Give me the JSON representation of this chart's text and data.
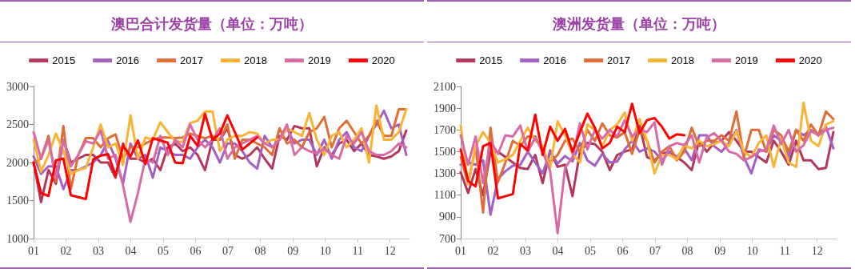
{
  "chart_data": [
    {
      "type": "line",
      "title": "澳巴合计发货量（单位：万吨）",
      "legend": "top",
      "grid": false,
      "marker": "none",
      "line_style": "solid",
      "x": [
        1,
        1.23,
        1.46,
        1.69,
        1.92,
        2.15,
        2.38,
        2.61,
        2.84,
        3.07,
        3.3,
        3.53,
        3.76,
        3.99,
        4.22,
        4.45,
        4.68,
        4.91,
        5.14,
        5.37,
        5.6,
        5.83,
        6.06,
        6.29,
        6.52,
        6.75,
        6.98,
        7.21,
        7.44,
        7.67,
        7.9,
        8.13,
        8.36,
        8.59,
        8.82,
        9.05,
        9.28,
        9.51,
        9.74,
        9.97,
        10.2,
        10.43,
        10.66,
        10.89,
        11.12,
        11.35,
        11.58,
        11.81,
        12.04,
        12.27,
        12.5
      ],
      "xlim": [
        1,
        12.6
      ],
      "xticks": [
        {
          "value": 1,
          "label": "01"
        },
        {
          "value": 2,
          "label": "02"
        },
        {
          "value": 3,
          "label": "03"
        },
        {
          "value": 4,
          "label": "04"
        },
        {
          "value": 5,
          "label": "05"
        },
        {
          "value": 6,
          "label": "06"
        },
        {
          "value": 7,
          "label": "07"
        },
        {
          "value": 8,
          "label": "08"
        },
        {
          "value": 9,
          "label": "09"
        },
        {
          "value": 10,
          "label": "10"
        },
        {
          "value": 11,
          "label": "11"
        },
        {
          "value": 12,
          "label": "12"
        }
      ],
      "ylim": [
        1000,
        3000
      ],
      "yticks": [
        1000,
        1500,
        2000,
        2500,
        3000
      ],
      "series": [
        {
          "name": "2015",
          "color": "#b5365b",
          "values": [
            2000,
            1480,
            1900,
            1720,
            2300,
            2000,
            2050,
            2100,
            2100,
            2000,
            2000,
            1800,
            2250,
            2050,
            2050,
            2000,
            2050,
            1900,
            2200,
            2250,
            2150,
            2200,
            2100,
            1900,
            2300,
            2300,
            2450,
            2100,
            2050,
            2100,
            2200,
            2050,
            1920,
            2350,
            2300,
            2480,
            2450,
            2450,
            1950,
            2200,
            2100,
            2250,
            2300,
            2150,
            2250,
            2100,
            2080,
            2050,
            2080,
            2150,
            2420
          ]
        },
        {
          "name": "2016",
          "color": "#a45fc4",
          "values": [
            2080,
            1850,
            1950,
            1950,
            1650,
            1900,
            1900,
            1950,
            2000,
            2100,
            2280,
            2050,
            1720,
            2250,
            2050,
            2100,
            1800,
            2200,
            2150,
            2100,
            2100,
            2050,
            2200,
            2300,
            2200,
            2000,
            2250,
            2250,
            2150,
            2000,
            1920,
            2350,
            2200,
            2300,
            2450,
            2250,
            2300,
            2300,
            2100,
            2300,
            2050,
            2300,
            2400,
            2200,
            2150,
            2350,
            2500,
            2680,
            2450,
            2500,
            2100
          ]
        },
        {
          "name": "2017",
          "color": "#e06d35",
          "values": [
            2000,
            2050,
            2350,
            1750,
            2480,
            1650,
            2100,
            2320,
            2320,
            2200,
            2320,
            2370,
            2050,
            2200,
            2200,
            2250,
            2300,
            2330,
            2330,
            2320,
            2330,
            2380,
            2350,
            2320,
            2350,
            2300,
            2500,
            2050,
            2300,
            2300,
            2250,
            2200,
            2100,
            2450,
            2250,
            2300,
            2200,
            2400,
            2450,
            2600,
            2200,
            2450,
            2550,
            2400,
            2250,
            2350,
            2550,
            2350,
            2350,
            2700,
            2700
          ]
        },
        {
          "name": "2018",
          "color": "#f8b432",
          "values": [
            2300,
            1880,
            2100,
            2380,
            2150,
            1850,
            1900,
            1930,
            2200,
            2500,
            2200,
            2250,
            1970,
            2620,
            2050,
            2330,
            2300,
            2530,
            2400,
            2280,
            2270,
            2520,
            2550,
            2670,
            2670,
            2150,
            2300,
            2350,
            2350,
            2400,
            2380,
            2250,
            2300,
            2300,
            2450,
            2400,
            2350,
            2650,
            2300,
            2100,
            2350,
            2400,
            2200,
            2300,
            2450,
            2000,
            2750,
            2300,
            2300,
            2400,
            2700
          ]
        },
        {
          "name": "2019",
          "color": "#d86aa8",
          "values": [
            2400,
            2050,
            2300,
            1800,
            2300,
            1950,
            2100,
            2280,
            2250,
            2420,
            2050,
            2100,
            1700,
            1220,
            1600,
            2050,
            2000,
            2350,
            2100,
            2300,
            2200,
            2500,
            2300,
            2200,
            2300,
            2450,
            2050,
            2200,
            2250,
            2300,
            2350,
            2250,
            2200,
            2300,
            2500,
            2100,
            2200,
            2150,
            2120,
            2180,
            2100,
            2050,
            2350,
            2250,
            2400,
            2150,
            2100,
            2100,
            2150,
            2250,
            2200
          ]
        },
        {
          "name": "2020",
          "color": "#ff0000",
          "values": [
            2000,
            1600,
            1560,
            2030,
            2050,
            1570,
            1545,
            1520,
            2040,
            2090,
            2110,
            1830,
            2220,
            2080,
            2290,
            1980,
            2320,
            2290,
            2260,
            2000,
            1990,
            2350,
            2220,
            2640,
            2300,
            2380,
            2620,
            2400,
            2170,
            2250,
            2330,
            null,
            null,
            null,
            null,
            null,
            null,
            null,
            null,
            null,
            null,
            null,
            null,
            null,
            null,
            null,
            null,
            null,
            null,
            null,
            null
          ]
        }
      ]
    },
    {
      "type": "line",
      "title": "澳洲发货量（单位：万吨）",
      "legend": "top",
      "grid": false,
      "marker": "none",
      "line_style": "solid",
      "x": [
        1,
        1.23,
        1.46,
        1.69,
        1.92,
        2.15,
        2.38,
        2.61,
        2.84,
        3.07,
        3.3,
        3.53,
        3.76,
        3.99,
        4.22,
        4.45,
        4.68,
        4.91,
        5.14,
        5.37,
        5.6,
        5.83,
        6.06,
        6.29,
        6.52,
        6.75,
        6.98,
        7.21,
        7.44,
        7.67,
        7.9,
        8.13,
        8.36,
        8.59,
        8.82,
        9.05,
        9.28,
        9.51,
        9.74,
        9.97,
        10.2,
        10.43,
        10.66,
        10.89,
        11.12,
        11.35,
        11.58,
        11.81,
        12.04,
        12.27,
        12.5
      ],
      "xlim": [
        1,
        12.6
      ],
      "xticks": [
        {
          "value": 1,
          "label": "01"
        },
        {
          "value": 2,
          "label": "02"
        },
        {
          "value": 3,
          "label": "03"
        },
        {
          "value": 4,
          "label": "04"
        },
        {
          "value": 5,
          "label": "05"
        },
        {
          "value": 6,
          "label": "06"
        },
        {
          "value": 7,
          "label": "07"
        },
        {
          "value": 8,
          "label": "08"
        },
        {
          "value": 9,
          "label": "09"
        },
        {
          "value": 10,
          "label": "10"
        },
        {
          "value": 11,
          "label": "11"
        },
        {
          "value": 12,
          "label": "12"
        }
      ],
      "ylim": [
        700,
        2100
      ],
      "yticks": [
        700,
        900,
        1100,
        1300,
        1500,
        1700,
        1900,
        2100
      ],
      "series": [
        {
          "name": "2015",
          "color": "#b5365b",
          "values": [
            1310,
            1120,
            1340,
            1100,
            1500,
            1500,
            1450,
            1400,
            1350,
            1340,
            1470,
            1210,
            1510,
            1360,
            1380,
            1090,
            1500,
            1580,
            1570,
            1500,
            1330,
            1470,
            1500,
            1520,
            1740,
            1450,
            1420,
            1480,
            1500,
            1450,
            1400,
            1330,
            1600,
            1500,
            1580,
            1600,
            1680,
            1600,
            1500,
            1500,
            1450,
            1400,
            1600,
            1500,
            1380,
            1600,
            1420,
            1420,
            1340,
            1350,
            1680
          ]
        },
        {
          "name": "2016",
          "color": "#a45fc4",
          "values": [
            1380,
            1400,
            1380,
            1420,
            920,
            1250,
            1320,
            1370,
            1380,
            1500,
            1400,
            1300,
            1500,
            1390,
            1460,
            1410,
            1580,
            1420,
            1370,
            1480,
            1400,
            1410,
            1520,
            1600,
            1500,
            1530,
            1500,
            1420,
            1500,
            1450,
            1530,
            1420,
            1650,
            1650,
            1550,
            1500,
            1580,
            1700,
            1450,
            1300,
            1520,
            1500,
            1650,
            1600,
            1450,
            1700,
            1650,
            1700,
            1650,
            1730,
            1530
          ]
        },
        {
          "name": "2017",
          "color": "#e06d35",
          "values": [
            1450,
            1200,
            1550,
            940,
            1720,
            1220,
            1400,
            1600,
            1550,
            1640,
            1640,
            1500,
            1400,
            1470,
            1600,
            1620,
            1500,
            1700,
            1600,
            1760,
            1650,
            1630,
            1680,
            1480,
            1700,
            1600,
            1400,
            1500,
            1550,
            1420,
            1500,
            1720,
            1550,
            1600,
            1600,
            1650,
            1600,
            1870,
            1450,
            1700,
            1700,
            1500,
            1700,
            1650,
            1500,
            1700,
            1600,
            1750,
            1650,
            1870,
            1800
          ]
        },
        {
          "name": "2018",
          "color": "#f8b432",
          "values": [
            1740,
            1200,
            1550,
            1680,
            1580,
            1400,
            1430,
            1470,
            1600,
            1720,
            1600,
            1550,
            1350,
            1780,
            1650,
            1480,
            1400,
            1750,
            1700,
            1550,
            1700,
            1750,
            1860,
            1600,
            1800,
            1600,
            1300,
            1470,
            1470,
            1430,
            1560,
            1530,
            1600,
            1550,
            1570,
            1600,
            1550,
            1690,
            1500,
            1450,
            1580,
            1650,
            1360,
            1620,
            1400,
            1360,
            1950,
            1600,
            1550,
            1750,
            1780
          ]
        },
        {
          "name": "2019",
          "color": "#d86aa8",
          "values": [
            1650,
            1380,
            1640,
            1210,
            1600,
            1480,
            1650,
            1640,
            1740,
            1500,
            1630,
            1500,
            1320,
            750,
            1350,
            1450,
            1760,
            1520,
            1700,
            1620,
            1700,
            1640,
            1790,
            1640,
            1700,
            1680,
            1770,
            1380,
            1550,
            1580,
            1560,
            1650,
            1400,
            1630,
            1670,
            1600,
            1500,
            1480,
            1420,
            1450,
            1500,
            1520,
            1740,
            1570,
            1700,
            1500,
            1560,
            1690,
            1650,
            1700,
            1720
          ]
        },
        {
          "name": "2020",
          "color": "#ff0000",
          "values": [
            1520,
            1230,
            1180,
            1550,
            1580,
            1070,
            1090,
            1110,
            1570,
            1510,
            1840,
            1470,
            1730,
            1600,
            1710,
            1500,
            1680,
            1850,
            1720,
            1530,
            1580,
            1730,
            1680,
            1940,
            1670,
            1790,
            1810,
            1730,
            1620,
            1660,
            1650,
            null,
            null,
            null,
            null,
            null,
            null,
            null,
            null,
            null,
            null,
            null,
            null,
            null,
            null,
            null,
            null,
            null,
            null,
            null,
            null
          ]
        }
      ]
    }
  ]
}
